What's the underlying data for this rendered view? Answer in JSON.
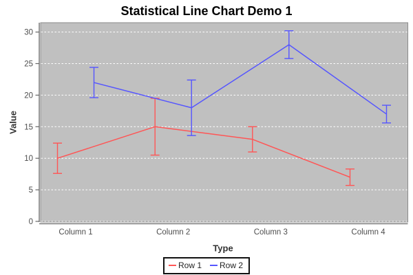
{
  "chart_data": {
    "type": "line",
    "title": "Statistical Line Chart Demo 1",
    "xlabel": "Type",
    "ylabel": "Value",
    "categories": [
      "Column 1",
      "Column 2",
      "Column 3",
      "Column 4"
    ],
    "series": [
      {
        "name": "Row 1",
        "color": "#FF5555",
        "means": [
          10,
          15,
          13,
          7
        ],
        "stddevs": [
          2.4,
          4.5,
          2.0,
          1.3
        ]
      },
      {
        "name": "Row 2",
        "color": "#5555FF",
        "means": [
          22,
          18,
          28,
          17
        ],
        "stddevs": [
          2.4,
          4.4,
          2.2,
          1.4
        ]
      }
    ],
    "error_bars": true,
    "ylim": [
      0,
      31.5
    ],
    "yticks": [
      0,
      5,
      10,
      15,
      20,
      25,
      30
    ],
    "grid": "horizontal-dashed",
    "gridline_color": "#FFFFFF",
    "plot_background": "#C0C0C0",
    "plot_outline_color": "#8A8A8A",
    "axis_line_color": "#666666",
    "tick_label_color": "#4D4D4D",
    "legend_position": "bottom"
  }
}
